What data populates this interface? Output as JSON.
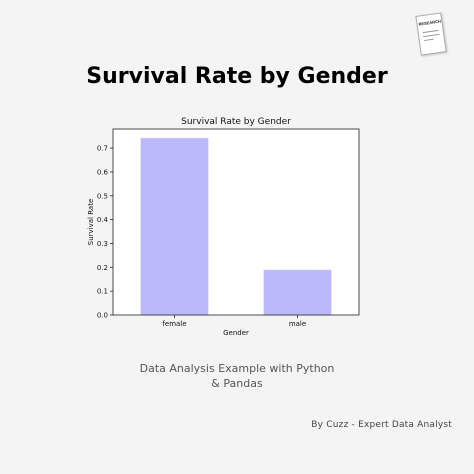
{
  "headline": "Survival Rate by Gender",
  "caption": "Data Analysis Example with Python & Pandas",
  "byline": "By Cuzz - Expert Data Analyst",
  "research_label": "RESEARCH",
  "colors": {
    "bar": "#bbb8fc",
    "bar_edge": "#d8d6ff",
    "background": "#f5f4f4"
  },
  "chart_data": {
    "type": "bar",
    "title": "Survival Rate by Gender",
    "xlabel": "Gender",
    "ylabel": "Survival Rate",
    "categories": [
      "female",
      "male"
    ],
    "values": [
      0.742,
      0.189
    ],
    "ylim": [
      0,
      0.78
    ],
    "yticks": [
      0.0,
      0.1,
      0.2,
      0.3,
      0.4,
      0.5,
      0.6,
      0.7
    ],
    "ytick_labels": [
      "0.0",
      "0.1",
      "0.2",
      "0.3",
      "0.4",
      "0.5",
      "0.6",
      "0.7"
    ],
    "grid": false,
    "legend": "none"
  }
}
